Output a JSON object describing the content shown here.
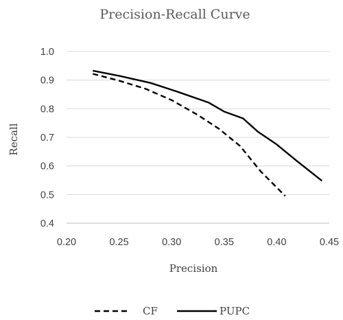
{
  "chart_data": {
    "type": "line",
    "title": "Precision-Recall Curve",
    "xlabel": "Precision",
    "ylabel": "Recall",
    "xlim": [
      0.2,
      0.45
    ],
    "ylim": [
      0.4,
      1.0
    ],
    "x_ticks": [
      "0.20",
      "0.25",
      "0.30",
      "0.35",
      "0.40",
      "0.45"
    ],
    "y_ticks": [
      "0.4",
      "0.5",
      "0.6",
      "0.7",
      "0.8",
      "0.9",
      "1.0"
    ],
    "grid": "horizontal",
    "legend_position": "bottom",
    "series": [
      {
        "name": "CF",
        "style": "dashed",
        "color": "#000000",
        "points": [
          [
            0.225,
            0.922
          ],
          [
            0.25,
            0.898
          ],
          [
            0.275,
            0.87
          ],
          [
            0.3,
            0.83
          ],
          [
            0.325,
            0.778
          ],
          [
            0.345,
            0.73
          ],
          [
            0.365,
            0.67
          ],
          [
            0.385,
            0.58
          ],
          [
            0.408,
            0.495
          ]
        ]
      },
      {
        "name": "PUPC",
        "style": "solid",
        "color": "#000000",
        "points": [
          [
            0.225,
            0.933
          ],
          [
            0.25,
            0.915
          ],
          [
            0.28,
            0.89
          ],
          [
            0.305,
            0.86
          ],
          [
            0.335,
            0.822
          ],
          [
            0.35,
            0.79
          ],
          [
            0.368,
            0.766
          ],
          [
            0.382,
            0.72
          ],
          [
            0.4,
            0.675
          ],
          [
            0.42,
            0.615
          ],
          [
            0.443,
            0.548
          ]
        ]
      }
    ]
  }
}
